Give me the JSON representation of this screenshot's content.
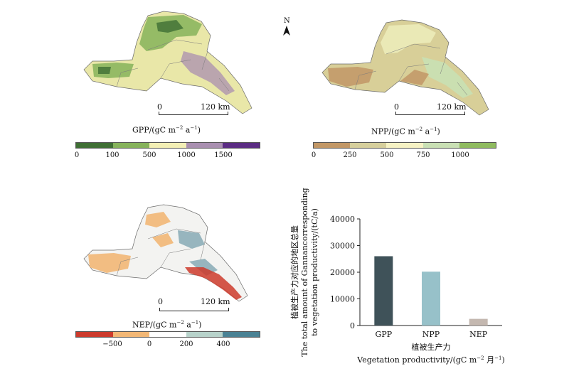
{
  "compass": {
    "label": "N"
  },
  "gpp_panel": {
    "scalebar": {
      "start": "0",
      "end": "120 km"
    },
    "title_main": "GPP/(gC m",
    "title_exp1": "−2",
    "title_mid": " a",
    "title_exp2": "−1",
    "title_end": ")",
    "legend": {
      "colors": [
        "#3f6f34",
        "#86b35b",
        "#f3efb5",
        "#a98fb0",
        "#5b2c83"
      ],
      "ticks": [
        "0",
        "100",
        "500",
        "1000",
        "1500"
      ]
    }
  },
  "npp_panel": {
    "scalebar": {
      "start": "0",
      "end": "120 km"
    },
    "title_main": "NPP/(gC m",
    "title_exp1": "−2",
    "title_mid": " a",
    "title_exp2": "−1",
    "title_end": ")",
    "legend": {
      "colors": [
        "#c29766",
        "#d6cf9c",
        "#f6f2c4",
        "#c9e0b4",
        "#8fbb5f"
      ],
      "ticks": [
        "0",
        "250",
        "500",
        "750",
        "1000"
      ]
    }
  },
  "nep_panel": {
    "scalebar": {
      "start": "0",
      "end": "120 km"
    },
    "title_main": "NEP/(gC m",
    "title_exp1": "−2",
    "title_mid": " a",
    "title_exp2": "−1",
    "title_end": ")",
    "legend": {
      "colors": [
        "#cc3a2c",
        "#f2b775",
        "#ffffff",
        "#b7d2ca",
        "#4a8294"
      ],
      "ticks": [
        "−500",
        "0",
        "200",
        "400"
      ]
    }
  },
  "chart_data": {
    "type": "bar",
    "categories": [
      "GPP",
      "NPP",
      "NEP"
    ],
    "values": [
      26000,
      20200,
      2500
    ],
    "colors": [
      "#3f5259",
      "#97c1c9",
      "#c4b8b0"
    ],
    "ylim": [
      0,
      40000
    ],
    "yticks": [
      0,
      10000,
      20000,
      30000,
      40000
    ],
    "ylabel_zh": "植被生产力对应的地区总量",
    "ylabel_en_1": "The total amount of Gannancorresponding",
    "ylabel_en_2": "to vegetation productivity/(tC/a)",
    "xlabel_zh": "植被生产力",
    "xlabel_en": "Vegetation productivity/(gC m",
    "xlabel_en_exp1": "−2",
    "xlabel_en_mid": " 月",
    "xlabel_en_exp2": "−1",
    "xlabel_en_end": ")"
  }
}
